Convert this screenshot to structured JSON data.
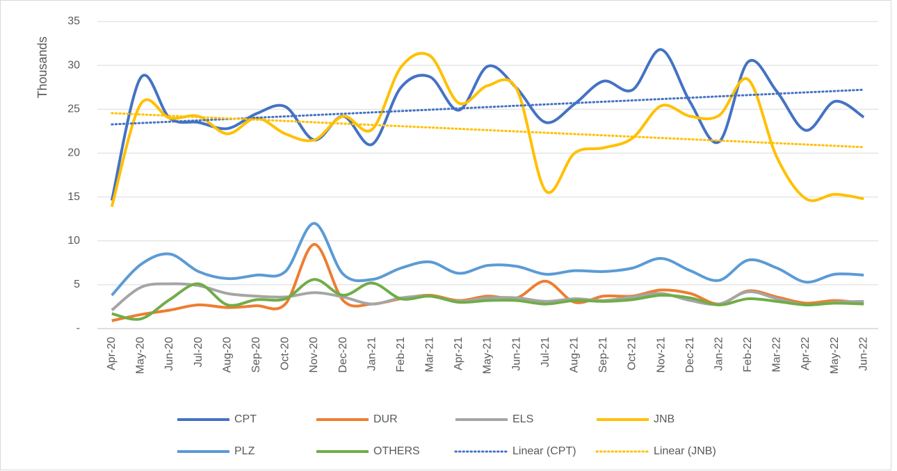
{
  "chart_data": {
    "type": "line",
    "y_label": "Thousands",
    "categories": [
      "Apr-20",
      "May-20",
      "Jun-20",
      "Jul-20",
      "Aug-20",
      "Sep-20",
      "Oct-20",
      "Nov-20",
      "Dec-20",
      "Jan-21",
      "Feb-21",
      "Mar-21",
      "Apr-21",
      "May-21",
      "Jun-21",
      "Jul-21",
      "Aug-21",
      "Sep-21",
      "Oct-21",
      "Nov-21",
      "Dec-21",
      "Jan-22",
      "Feb-22",
      "Mar-22",
      "Apr-22",
      "May-22",
      "Jun-22"
    ],
    "series": [
      {
        "name": "CPT",
        "color": "#4472c4",
        "values": [
          14.6,
          28.6,
          24,
          23.5,
          22.8,
          24.5,
          25.3,
          21.5,
          24.2,
          21,
          27.5,
          28.7,
          24.9,
          29.9,
          27.4,
          23.5,
          25.6,
          28.2,
          27.2,
          31.8,
          25.8,
          21.3,
          30.4,
          27,
          22.6,
          25.9,
          24.1
        ]
      },
      {
        "name": "DUR",
        "color": "#ed7d31",
        "values": [
          0.9,
          1.6,
          2.1,
          2.7,
          2.4,
          2.6,
          2.8,
          9.6,
          3.2,
          2.8,
          3.4,
          3.8,
          3.2,
          3.7,
          3.5,
          5.4,
          3,
          3.7,
          3.7,
          4.4,
          4,
          2.8,
          4.3,
          3.6,
          2.9,
          3.2,
          2.9
        ]
      },
      {
        "name": "ELS",
        "color": "#a5a5a5",
        "values": [
          2.1,
          4.7,
          5.1,
          4.9,
          4,
          3.7,
          3.6,
          4.1,
          3.6,
          2.8,
          3.5,
          3.7,
          3.1,
          3.5,
          3.5,
          3.1,
          3.4,
          3.2,
          3.6,
          4,
          3.2,
          2.8,
          4.2,
          3.4,
          2.7,
          3,
          3.1
        ]
      },
      {
        "name": "JNB",
        "color": "#ffc000",
        "values": [
          13.9,
          25.6,
          24,
          24.2,
          22.2,
          24,
          22.2,
          21.5,
          24.2,
          22.7,
          29.8,
          31.1,
          25.7,
          27.7,
          27.3,
          15.7,
          20,
          20.6,
          21.7,
          25.4,
          24.2,
          24.3,
          28.4,
          19.5,
          14.8,
          15.3,
          14.8
        ]
      },
      {
        "name": "PLZ",
        "color": "#5b9bd5",
        "values": [
          3.8,
          7.3,
          8.5,
          6.5,
          5.7,
          6.1,
          6.5,
          12,
          6.2,
          5.6,
          6.9,
          7.6,
          6.3,
          7.2,
          7.1,
          6.2,
          6.6,
          6.5,
          6.9,
          8,
          6.6,
          5.5,
          7.8,
          6.9,
          5.3,
          6.2,
          6.1
        ]
      },
      {
        "name": "OTHERS",
        "color": "#70ad47",
        "values": [
          1.7,
          1.1,
          3.3,
          5.1,
          2.7,
          3.3,
          3.4,
          5.6,
          3.8,
          5.2,
          3.4,
          3.7,
          3,
          3.2,
          3.2,
          2.8,
          3.2,
          3.1,
          3.3,
          3.8,
          3.5,
          2.7,
          3.4,
          3.1,
          2.7,
          2.9,
          2.8
        ]
      }
    ],
    "trendlines": [
      {
        "name": "Linear (CPT)",
        "series": 0,
        "color": "#4472c4"
      },
      {
        "name": "Linear (JNB)",
        "series": 3,
        "color": "#ffc000"
      }
    ],
    "ylim": [
      0,
      35
    ],
    "yticks": [
      {
        "value": 0,
        "label": "-"
      },
      5,
      10,
      15,
      20,
      25,
      30,
      35
    ],
    "grid": true,
    "smooth": true
  }
}
